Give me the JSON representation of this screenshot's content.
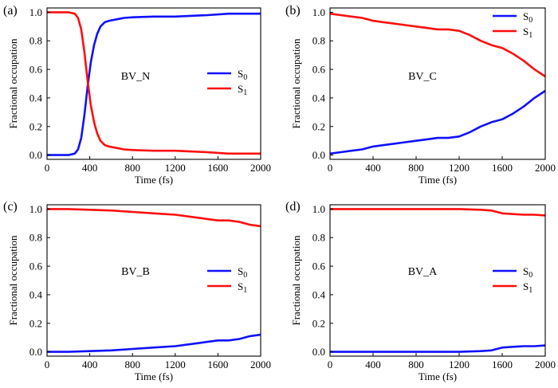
{
  "colors": {
    "s0": "#1010ff",
    "s1": "#ff0d0d",
    "axis": "#000000"
  },
  "chart_data": [
    {
      "type": "line",
      "panel_label": "(a)",
      "annotation": "BV_N",
      "xlabel": "Time (fs)",
      "ylabel": "Fractional occupation",
      "xlim": [
        0,
        2000
      ],
      "ylim": [
        -0.03,
        1.03
      ],
      "xticks": [
        0,
        400,
        800,
        1200,
        1600,
        2000
      ],
      "yticks": [
        0.0,
        0.2,
        0.4,
        0.6,
        0.8,
        1.0
      ],
      "xticklabels": [
        "0",
        "400",
        "800",
        "1200",
        "1600",
        "2000"
      ],
      "yticklabels": [
        "0.0",
        "0.2",
        "0.4",
        "0.6",
        "0.8",
        "1.0"
      ],
      "legend": "right-middle",
      "series": [
        {
          "name": "S0",
          "label_main": "S",
          "label_sub": "0",
          "color": "#1010ff",
          "x": [
            0,
            200,
            260,
            290,
            320,
            350,
            380,
            410,
            440,
            470,
            500,
            540,
            580,
            650,
            720,
            800,
            1000,
            1200,
            1500,
            1700,
            1900,
            2000
          ],
          "y": [
            0.0,
            0.0,
            0.01,
            0.04,
            0.12,
            0.28,
            0.48,
            0.65,
            0.77,
            0.85,
            0.9,
            0.93,
            0.94,
            0.95,
            0.96,
            0.965,
            0.97,
            0.97,
            0.98,
            0.99,
            0.99,
            0.99
          ]
        },
        {
          "name": "S1",
          "label_main": "S",
          "label_sub": "1",
          "color": "#ff0d0d",
          "x": [
            0,
            200,
            260,
            290,
            320,
            350,
            380,
            410,
            440,
            470,
            500,
            540,
            580,
            650,
            720,
            800,
            1000,
            1200,
            1500,
            1700,
            1900,
            2000
          ],
          "y": [
            1.0,
            1.0,
            0.99,
            0.96,
            0.88,
            0.72,
            0.52,
            0.35,
            0.23,
            0.15,
            0.1,
            0.07,
            0.06,
            0.05,
            0.04,
            0.035,
            0.03,
            0.03,
            0.02,
            0.01,
            0.01,
            0.01
          ]
        }
      ]
    },
    {
      "type": "line",
      "panel_label": "(b)",
      "annotation": "BV_C",
      "xlabel": "Time (fs)",
      "ylabel": "Fractional occupation",
      "xlim": [
        0,
        2000
      ],
      "ylim": [
        -0.03,
        1.03
      ],
      "xticks": [
        0,
        400,
        800,
        1200,
        1600,
        2000
      ],
      "yticks": [
        0.0,
        0.2,
        0.4,
        0.6,
        0.8,
        1.0
      ],
      "xticklabels": [
        "0",
        "400",
        "800",
        "1200",
        "1600",
        "2000"
      ],
      "yticklabels": [
        "0.0",
        "0.2",
        "0.4",
        "0.6",
        "0.8",
        "1.0"
      ],
      "legend": "top-right",
      "series": [
        {
          "name": "S0",
          "label_main": "S",
          "label_sub": "0",
          "color": "#1010ff",
          "x": [
            0,
            100,
            200,
            300,
            400,
            500,
            600,
            700,
            800,
            900,
            1000,
            1100,
            1200,
            1300,
            1400,
            1500,
            1600,
            1700,
            1800,
            1900,
            2000
          ],
          "y": [
            0.01,
            0.02,
            0.03,
            0.04,
            0.06,
            0.07,
            0.08,
            0.09,
            0.1,
            0.11,
            0.12,
            0.12,
            0.13,
            0.16,
            0.2,
            0.23,
            0.25,
            0.29,
            0.34,
            0.4,
            0.45
          ]
        },
        {
          "name": "S1",
          "label_main": "S",
          "label_sub": "1",
          "color": "#ff0d0d",
          "x": [
            0,
            100,
            200,
            300,
            400,
            500,
            600,
            700,
            800,
            900,
            1000,
            1100,
            1200,
            1300,
            1400,
            1500,
            1600,
            1700,
            1800,
            1900,
            2000
          ],
          "y": [
            0.99,
            0.98,
            0.97,
            0.96,
            0.94,
            0.93,
            0.92,
            0.91,
            0.9,
            0.89,
            0.88,
            0.88,
            0.87,
            0.84,
            0.8,
            0.77,
            0.75,
            0.71,
            0.66,
            0.6,
            0.55
          ]
        }
      ]
    },
    {
      "type": "line",
      "panel_label": "(c)",
      "annotation": "BV_B",
      "xlabel": "Time (fs)",
      "ylabel": "Fractional occupation",
      "xlim": [
        0,
        2000
      ],
      "ylim": [
        -0.03,
        1.03
      ],
      "xticks": [
        0,
        400,
        800,
        1200,
        1600,
        2000
      ],
      "yticks": [
        0.0,
        0.2,
        0.4,
        0.6,
        0.8,
        1.0
      ],
      "xticklabels": [
        "0",
        "400",
        "800",
        "1200",
        "1600",
        "2000"
      ],
      "yticklabels": [
        "0.0",
        "0.2",
        "0.4",
        "0.6",
        "0.8",
        "1.0"
      ],
      "legend": "right-middle",
      "series": [
        {
          "name": "S0",
          "label_main": "S",
          "label_sub": "0",
          "color": "#1010ff",
          "x": [
            0,
            200,
            400,
            600,
            800,
            1000,
            1200,
            1400,
            1500,
            1600,
            1700,
            1800,
            1900,
            2000
          ],
          "y": [
            0.0,
            0.0,
            0.005,
            0.01,
            0.02,
            0.03,
            0.04,
            0.06,
            0.07,
            0.08,
            0.08,
            0.09,
            0.11,
            0.12
          ]
        },
        {
          "name": "S1",
          "label_main": "S",
          "label_sub": "1",
          "color": "#ff0d0d",
          "x": [
            0,
            200,
            400,
            600,
            800,
            1000,
            1200,
            1400,
            1500,
            1600,
            1700,
            1800,
            1900,
            2000
          ],
          "y": [
            1.0,
            1.0,
            0.995,
            0.99,
            0.98,
            0.97,
            0.96,
            0.94,
            0.93,
            0.92,
            0.92,
            0.91,
            0.89,
            0.88
          ]
        }
      ]
    },
    {
      "type": "line",
      "panel_label": "(d)",
      "annotation": "BV_A",
      "xlabel": "Time (fs)",
      "ylabel": "Fractional occupation",
      "xlim": [
        0,
        2000
      ],
      "ylim": [
        -0.03,
        1.03
      ],
      "xticks": [
        0,
        400,
        800,
        1200,
        1600,
        2000
      ],
      "yticks": [
        0.0,
        0.2,
        0.4,
        0.6,
        0.8,
        1.0
      ],
      "xticklabels": [
        "0",
        "400",
        "800",
        "1200",
        "1600",
        "2000"
      ],
      "yticklabels": [
        "0.0",
        "0.2",
        "0.4",
        "0.6",
        "0.8",
        "1.0"
      ],
      "legend": "right-middle",
      "series": [
        {
          "name": "S0",
          "label_main": "S",
          "label_sub": "0",
          "color": "#1010ff",
          "x": [
            0,
            400,
            800,
            1200,
            1400,
            1500,
            1550,
            1600,
            1700,
            1800,
            1900,
            2000
          ],
          "y": [
            0.0,
            0.0,
            0.0,
            0.0,
            0.005,
            0.01,
            0.02,
            0.03,
            0.035,
            0.04,
            0.04,
            0.045
          ]
        },
        {
          "name": "S1",
          "label_main": "S",
          "label_sub": "1",
          "color": "#ff0d0d",
          "x": [
            0,
            400,
            800,
            1200,
            1400,
            1500,
            1550,
            1600,
            1700,
            1800,
            1900,
            2000
          ],
          "y": [
            1.0,
            1.0,
            1.0,
            1.0,
            0.995,
            0.99,
            0.98,
            0.97,
            0.965,
            0.96,
            0.96,
            0.955
          ]
        }
      ]
    }
  ]
}
